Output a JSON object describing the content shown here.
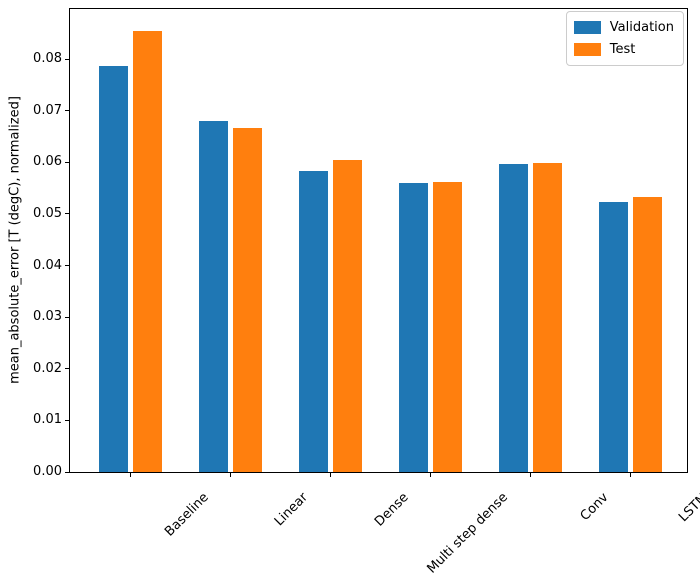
{
  "figure": {
    "background": "#ffffff"
  },
  "chart_data": {
    "type": "bar",
    "title": "",
    "xlabel": "",
    "ylabel": "mean_absolute_error [T (degC), normalized]",
    "categories": [
      "Baseline",
      "Linear",
      "Dense",
      "Multi step dense",
      "Conv",
      "LSTM"
    ],
    "series": [
      {
        "name": "Validation",
        "color": "#1f77b4",
        "values": [
          0.0786,
          0.0681,
          0.0584,
          0.0559,
          0.0597,
          0.0524
        ]
      },
      {
        "name": "Test",
        "color": "#ff7f0e",
        "values": [
          0.0855,
          0.0666,
          0.0605,
          0.0562,
          0.0598,
          0.0533
        ]
      }
    ],
    "ylim": [
      0,
      0.0897
    ],
    "yticks": [
      0,
      0.01,
      0.02,
      0.03,
      0.04,
      0.05,
      0.06,
      0.07,
      0.08
    ],
    "ytick_decimals": 2,
    "xtick_rotation_deg": 45,
    "grid": false,
    "legend_position": "upper-right"
  }
}
